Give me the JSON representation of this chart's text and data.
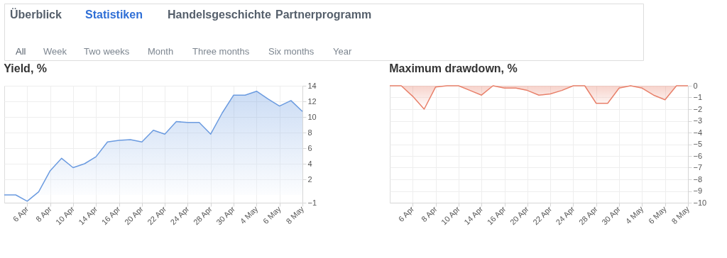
{
  "chart_data": [
    {
      "type": "area",
      "title": "Yield, %",
      "annotations": [
        "Überblick",
        "Statistiken",
        "Handelsgeschichte",
        "Partnerprogramm",
        "All",
        "Week",
        "Two weeks",
        "Month",
        "Three months",
        "Six months",
        "Year"
      ],
      "categories": [
        null,
        null,
        "6 Apr",
        null,
        "8 Apr",
        null,
        "10 Apr",
        null,
        "14 Apr",
        null,
        "16 Apr",
        null,
        "20 Apr",
        null,
        "22 Apr",
        null,
        "24 Apr",
        null,
        "28 Apr",
        null,
        "30 Apr",
        null,
        "4 May",
        null,
        "6 May",
        null,
        "8 May"
      ],
      "series": [
        {
          "color": "#6b9be0",
          "values": [
            0,
            0,
            -0.8,
            0.4,
            3.1,
            4.7,
            3.5,
            4.0,
            4.9,
            6.8,
            7.0,
            7.1,
            6.8,
            8.3,
            7.8,
            9.4,
            9.3,
            9.3,
            7.8,
            10.5,
            12.8,
            12.8,
            13.3,
            12.3,
            11.4,
            12.1,
            10.7
          ]
        }
      ],
      "ylim": [
        -1,
        14
      ],
      "yticks": [
        14,
        12,
        10,
        8,
        6,
        4,
        2,
        -1
      ],
      "grid": true
    },
    {
      "type": "area",
      "title": "Maximum drawdown, %",
      "categories": [
        null,
        null,
        "6 Apr",
        null,
        "8 Apr",
        null,
        "10 Apr",
        null,
        "14 Apr",
        null,
        "16 Apr",
        null,
        "20 Apr",
        null,
        "22 Apr",
        null,
        "24 Apr",
        null,
        "28 Apr",
        null,
        "30 Apr",
        null,
        "4 May",
        null,
        "6 May",
        null,
        "8 May"
      ],
      "series": [
        {
          "color": "#e8806a",
          "values": [
            0,
            0,
            -0.9,
            -2.0,
            -0.1,
            0,
            0,
            -0.4,
            -0.8,
            0,
            -0.2,
            -0.2,
            -0.4,
            -0.8,
            -0.7,
            -0.4,
            0,
            0,
            -1.5,
            -1.5,
            -0.2,
            0,
            -0.2,
            -0.8,
            -1.2,
            0,
            0
          ]
        }
      ],
      "ylim": [
        -10,
        0
      ],
      "yticks": [
        0,
        -1,
        -2,
        -3,
        -4,
        -5,
        -6,
        -7,
        -8,
        -9,
        -10
      ],
      "grid": true
    }
  ]
}
